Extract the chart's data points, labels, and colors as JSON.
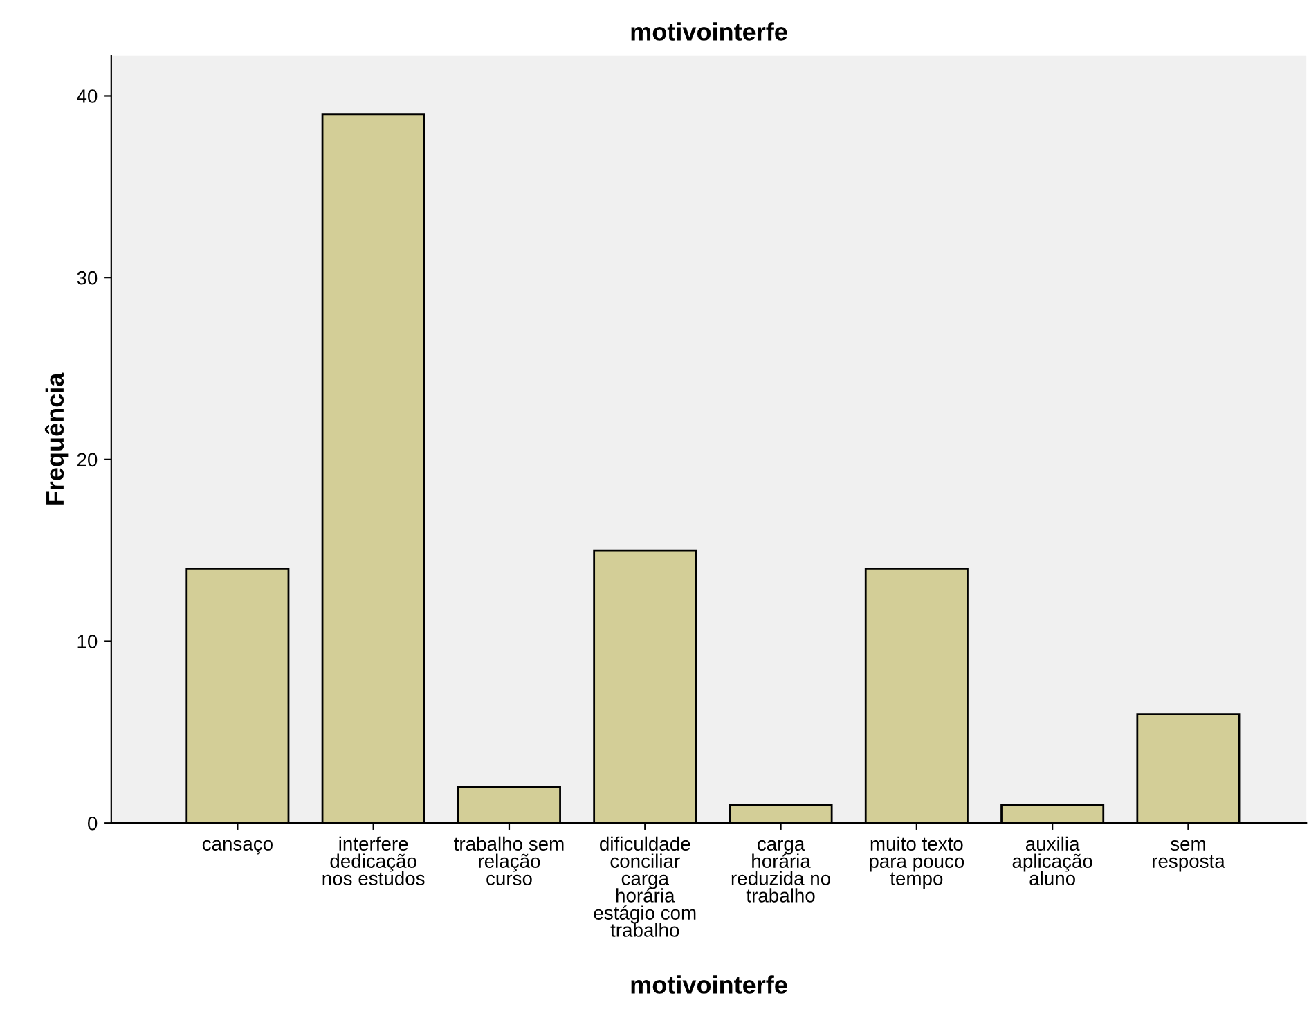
{
  "chart_data": {
    "type": "bar",
    "title": "motivointerfe",
    "xlabel": "motivointerfe",
    "ylabel": "Frequência",
    "categories": [
      "cansaço",
      "interfere\ndedicação\nnos estudos",
      "trabalho sem\nrelação\ncurso",
      "dificuldade\nconciliar\ncarga\nhorária\nestágio com\ntrabalho",
      "carga\nhorária\nreduzida no\ntrabalho",
      "muito texto\npara pouco\ntempo",
      "auxilia\naplicação\naluno",
      "sem\nresposta"
    ],
    "values": [
      14,
      39,
      2,
      15,
      1,
      14,
      1,
      6
    ],
    "color": "#d3ce97",
    "ylim": [
      0,
      42.2
    ],
    "yticks": [
      0,
      10,
      20,
      30,
      40
    ],
    "grid": false
  }
}
